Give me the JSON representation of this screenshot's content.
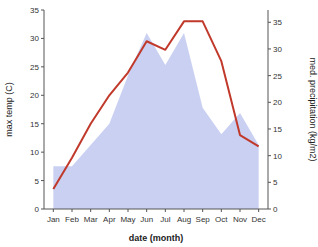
{
  "chart_data": {
    "type": "line",
    "x_label": "date (month)",
    "y_label": "max temp (C)",
    "y2_label": "med. precipitation (kg/m2)",
    "categories": [
      "Jan",
      "Feb",
      "Mar",
      "Apr",
      "May",
      "Jun",
      "Jul",
      "Aug",
      "Sep",
      "Oct",
      "Nov",
      "Dec"
    ],
    "series": [
      {
        "type": "area",
        "axis": "y2",
        "color": "#c0c8f0",
        "values": [
          8,
          8,
          12,
          16,
          25,
          33,
          27,
          33,
          19,
          14,
          18,
          12
        ]
      },
      {
        "type": "line",
        "color": "#c0392b",
        "values": [
          3.5,
          9,
          15,
          20,
          24,
          29.5,
          28,
          33,
          33,
          26,
          13,
          11
        ]
      }
    ],
    "ylim": [
      0,
      35
    ],
    "yticks": [
      0,
      5,
      10,
      15,
      20,
      25,
      30,
      35
    ],
    "y2lim": [
      0,
      37.3
    ],
    "y2ticks": [
      0,
      5,
      10,
      15,
      20,
      25,
      30,
      35
    ],
    "grid": false
  }
}
